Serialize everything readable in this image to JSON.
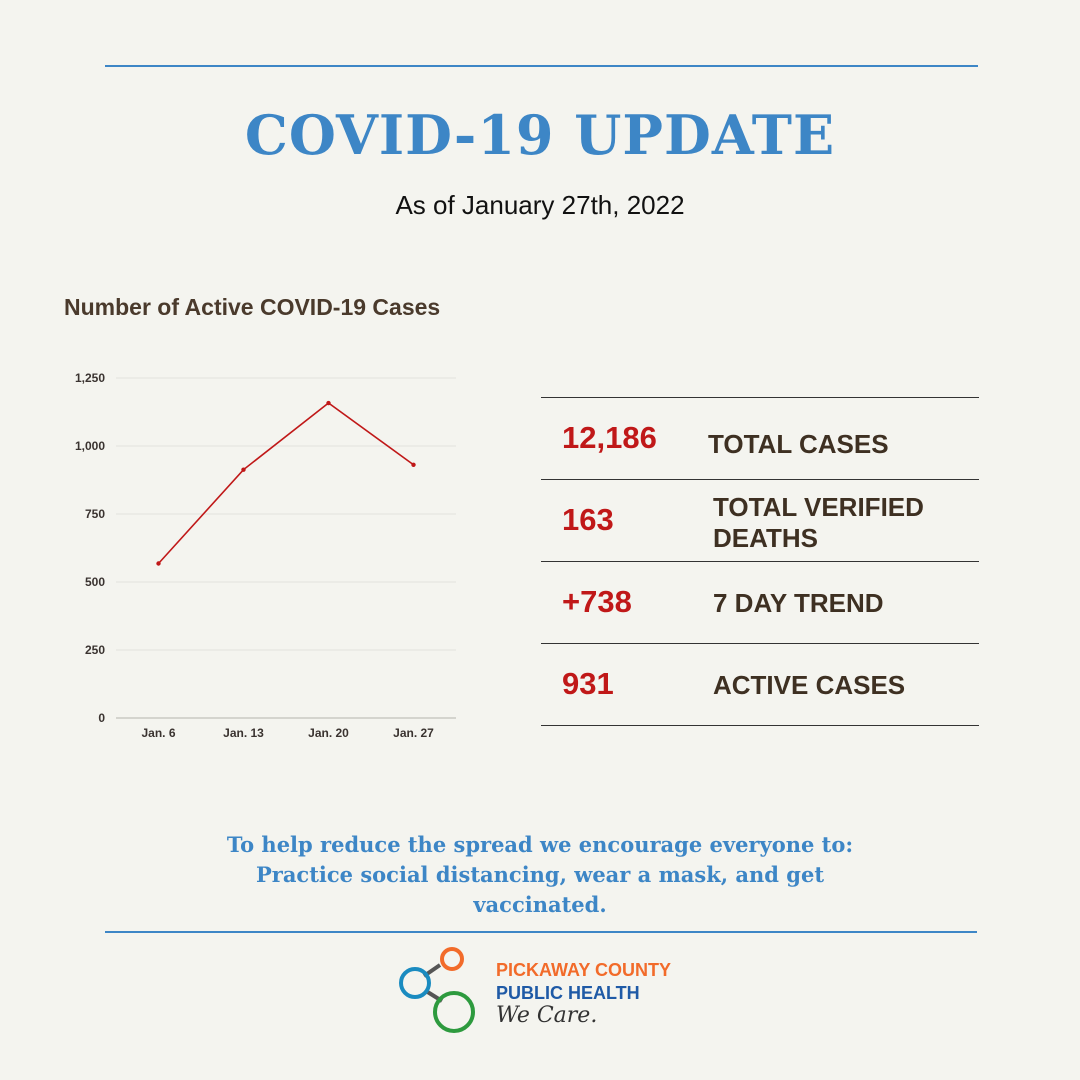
{
  "header": {
    "title": "COVID-19 UPDATE",
    "subtitle": "As of January 27th, 2022"
  },
  "chart_data": {
    "type": "line",
    "title": "Number of Active COVID-19 Cases",
    "categories": [
      "Jan. 6",
      "Jan. 13",
      "Jan. 20",
      "Jan. 27"
    ],
    "series": [
      {
        "values": [
          568,
          913,
          1158,
          931
        ]
      }
    ],
    "yticks": [
      0,
      250,
      500,
      750,
      1000,
      1250
    ],
    "ytick_labels": [
      "0",
      "250",
      "500",
      "750",
      "1,000",
      "1,250"
    ],
    "ylim": [
      0,
      1250
    ],
    "grid": true,
    "line_color": "#c01818"
  },
  "stats": [
    {
      "value": "12,186",
      "label": "TOTAL CASES"
    },
    {
      "value": "163",
      "label": "TOTAL VERIFIED DEATHS"
    },
    {
      "value": "+738",
      "label": "7 DAY TREND"
    },
    {
      "value": "931",
      "label": "ACTIVE CASES"
    }
  ],
  "footer": {
    "line1": "To help reduce the spread we encourage everyone to:",
    "line2": "Practice social distancing, wear a mask, and get",
    "line3": "vaccinated."
  },
  "logo": {
    "name_line1": "PICKAWAY COUNTY",
    "name_line2": "PUBLIC HEALTH",
    "tagline": "We Care.",
    "icon": "connected-circles-icon"
  },
  "colors": {
    "accent": "#3d86c6",
    "stat_value": "#c01818",
    "label": "#3e3022",
    "background": "#f4f4ef"
  }
}
